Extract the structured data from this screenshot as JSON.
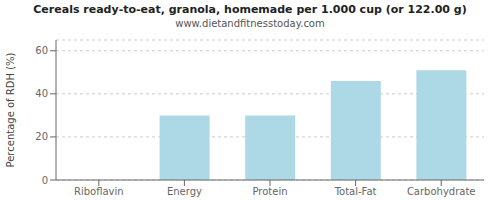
{
  "chart_data": {
    "type": "bar",
    "title": "Cereals ready-to-eat, granola, homemade per 1.000 cup (or 122.00 g)",
    "subtitle": "www.dietandfitnesstoday.com",
    "categories": [
      "Riboflavin",
      "Energy",
      "Protein",
      "Total-Fat",
      "Carbohydrate"
    ],
    "values": [
      0,
      30,
      30,
      46,
      51
    ],
    "color": "#add8e6",
    "ylabel": "Percentage of RDH (%)",
    "ylim": [
      0,
      65
    ],
    "yticks": [
      0,
      20,
      40,
      60
    ],
    "grid": true
  }
}
